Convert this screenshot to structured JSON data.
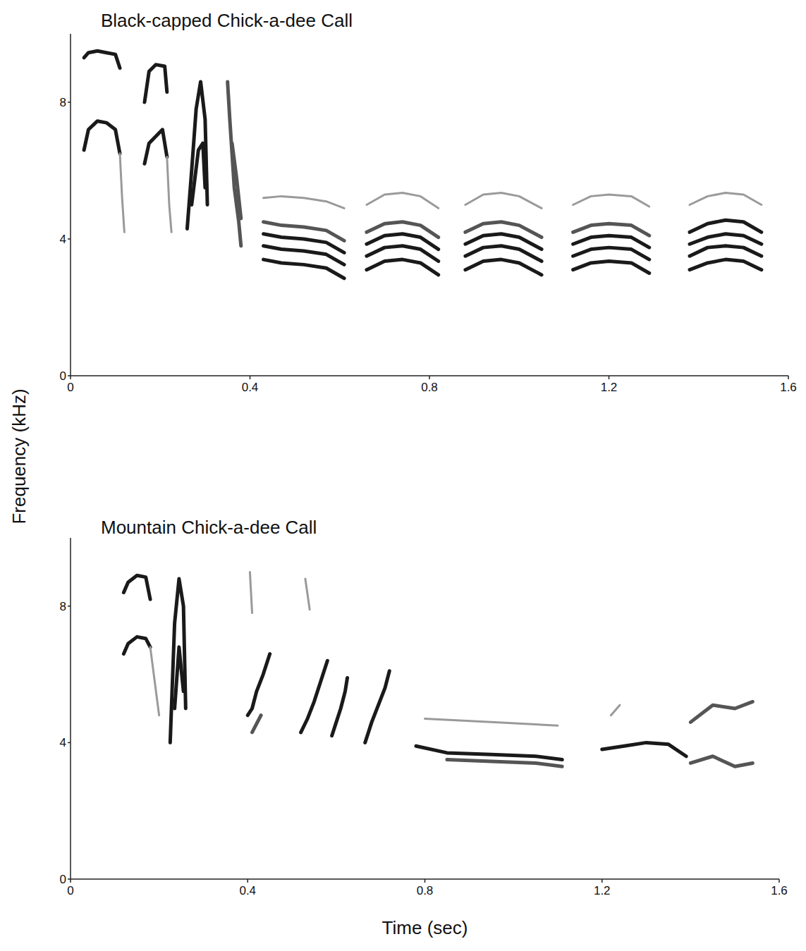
{
  "chart_data": [
    {
      "type": "spectrogram",
      "title": "Black-capped Chick-a-dee Call",
      "ylabel": "Frequency (kHz)",
      "xlim": [
        0,
        1.6
      ],
      "ylim": [
        0,
        10
      ],
      "xticks": [
        0,
        0.4,
        0.8,
        1.2,
        1.6
      ],
      "yticks": [
        0,
        4,
        8
      ],
      "series": [
        {
          "color": "#1a1a1a",
          "x": [
            0.03,
            0.04,
            0.06,
            0.08,
            0.1,
            0.11
          ],
          "values": [
            9.3,
            9.45,
            9.5,
            9.45,
            9.4,
            9.0
          ]
        },
        {
          "color": "#1a1a1a",
          "x": [
            0.03,
            0.04,
            0.06,
            0.08,
            0.1,
            0.11
          ],
          "values": [
            6.6,
            7.2,
            7.45,
            7.4,
            7.2,
            6.5
          ]
        },
        {
          "color": "#9a9a9a",
          "x": [
            0.11,
            0.115,
            0.12
          ],
          "values": [
            6.5,
            5.2,
            4.2
          ]
        },
        {
          "color": "#1a1a1a",
          "x": [
            0.165,
            0.175,
            0.19,
            0.21,
            0.215
          ],
          "values": [
            8.0,
            8.9,
            9.1,
            9.05,
            8.3
          ]
        },
        {
          "color": "#1a1a1a",
          "x": [
            0.165,
            0.175,
            0.19,
            0.205,
            0.215
          ],
          "values": [
            6.2,
            6.8,
            7.0,
            7.2,
            6.4
          ]
        },
        {
          "color": "#9a9a9a",
          "x": [
            0.215,
            0.22,
            0.225
          ],
          "values": [
            6.4,
            5.0,
            4.2
          ]
        },
        {
          "color": "#1a1a1a",
          "x": [
            0.26,
            0.27,
            0.28,
            0.29,
            0.3,
            0.305
          ],
          "values": [
            4.3,
            6.0,
            7.8,
            8.6,
            7.5,
            5.0
          ]
        },
        {
          "color": "#1a1a1a",
          "x": [
            0.27,
            0.285,
            0.295,
            0.3
          ],
          "values": [
            5.0,
            6.6,
            6.8,
            5.5
          ]
        },
        {
          "color": "#555555",
          "x": [
            0.35,
            0.355,
            0.36,
            0.365,
            0.37,
            0.375,
            0.38
          ],
          "values": [
            8.6,
            7.5,
            6.5,
            5.5,
            5.0,
            4.5,
            3.8
          ]
        },
        {
          "color": "#555555",
          "x": [
            0.36,
            0.37,
            0.38
          ],
          "values": [
            6.8,
            5.8,
            4.6
          ]
        },
        {
          "color": "#1a1a1a",
          "x": [
            0.43,
            0.47,
            0.52,
            0.57,
            0.61
          ],
          "values": [
            3.4,
            3.3,
            3.25,
            3.15,
            2.85
          ]
        },
        {
          "color": "#1a1a1a",
          "x": [
            0.43,
            0.47,
            0.52,
            0.57,
            0.61
          ],
          "values": [
            3.8,
            3.7,
            3.65,
            3.55,
            3.25
          ]
        },
        {
          "color": "#1a1a1a",
          "x": [
            0.43,
            0.47,
            0.52,
            0.57,
            0.61
          ],
          "values": [
            4.15,
            4.05,
            4.0,
            3.9,
            3.6
          ]
        },
        {
          "color": "#555555",
          "x": [
            0.43,
            0.47,
            0.52,
            0.57,
            0.61
          ],
          "values": [
            4.5,
            4.4,
            4.35,
            4.25,
            3.95
          ]
        },
        {
          "color": "#9a9a9a",
          "x": [
            0.43,
            0.47,
            0.52,
            0.57,
            0.61
          ],
          "values": [
            5.2,
            5.25,
            5.2,
            5.1,
            4.9
          ]
        },
        {
          "color": "#1a1a1a",
          "x": [
            0.66,
            0.7,
            0.74,
            0.78,
            0.82
          ],
          "values": [
            3.1,
            3.35,
            3.4,
            3.3,
            2.95
          ]
        },
        {
          "color": "#1a1a1a",
          "x": [
            0.66,
            0.7,
            0.74,
            0.78,
            0.82
          ],
          "values": [
            3.5,
            3.75,
            3.8,
            3.7,
            3.35
          ]
        },
        {
          "color": "#1a1a1a",
          "x": [
            0.66,
            0.7,
            0.74,
            0.78,
            0.82
          ],
          "values": [
            3.85,
            4.1,
            4.15,
            4.05,
            3.7
          ]
        },
        {
          "color": "#555555",
          "x": [
            0.66,
            0.7,
            0.74,
            0.78,
            0.82
          ],
          "values": [
            4.2,
            4.45,
            4.5,
            4.4,
            4.05
          ]
        },
        {
          "color": "#9a9a9a",
          "x": [
            0.66,
            0.7,
            0.74,
            0.78,
            0.82
          ],
          "values": [
            5.0,
            5.3,
            5.35,
            5.25,
            4.9
          ]
        },
        {
          "color": "#1a1a1a",
          "x": [
            0.88,
            0.92,
            0.96,
            1.0,
            1.05
          ],
          "values": [
            3.1,
            3.35,
            3.4,
            3.3,
            2.95
          ]
        },
        {
          "color": "#1a1a1a",
          "x": [
            0.88,
            0.92,
            0.96,
            1.0,
            1.05
          ],
          "values": [
            3.5,
            3.75,
            3.8,
            3.7,
            3.35
          ]
        },
        {
          "color": "#1a1a1a",
          "x": [
            0.88,
            0.92,
            0.96,
            1.0,
            1.05
          ],
          "values": [
            3.85,
            4.1,
            4.15,
            4.05,
            3.7
          ]
        },
        {
          "color": "#555555",
          "x": [
            0.88,
            0.92,
            0.96,
            1.0,
            1.05
          ],
          "values": [
            4.2,
            4.45,
            4.5,
            4.4,
            4.05
          ]
        },
        {
          "color": "#9a9a9a",
          "x": [
            0.88,
            0.92,
            0.96,
            1.0,
            1.05
          ],
          "values": [
            5.0,
            5.3,
            5.35,
            5.25,
            4.9
          ]
        },
        {
          "color": "#1a1a1a",
          "x": [
            1.12,
            1.16,
            1.2,
            1.25,
            1.29
          ],
          "values": [
            3.1,
            3.3,
            3.35,
            3.3,
            3.0
          ]
        },
        {
          "color": "#1a1a1a",
          "x": [
            1.12,
            1.16,
            1.2,
            1.25,
            1.29
          ],
          "values": [
            3.5,
            3.7,
            3.75,
            3.7,
            3.4
          ]
        },
        {
          "color": "#1a1a1a",
          "x": [
            1.12,
            1.16,
            1.2,
            1.25,
            1.29
          ],
          "values": [
            3.85,
            4.05,
            4.1,
            4.05,
            3.75
          ]
        },
        {
          "color": "#555555",
          "x": [
            1.12,
            1.16,
            1.2,
            1.25,
            1.29
          ],
          "values": [
            4.2,
            4.4,
            4.45,
            4.4,
            4.1
          ]
        },
        {
          "color": "#9a9a9a",
          "x": [
            1.12,
            1.16,
            1.2,
            1.25,
            1.29
          ],
          "values": [
            5.0,
            5.25,
            5.3,
            5.25,
            4.95
          ]
        },
        {
          "color": "#1a1a1a",
          "x": [
            1.38,
            1.42,
            1.46,
            1.5,
            1.54
          ],
          "values": [
            3.1,
            3.3,
            3.4,
            3.35,
            3.1
          ]
        },
        {
          "color": "#1a1a1a",
          "x": [
            1.38,
            1.42,
            1.46,
            1.5,
            1.54
          ],
          "values": [
            3.5,
            3.75,
            3.8,
            3.75,
            3.5
          ]
        },
        {
          "color": "#1a1a1a",
          "x": [
            1.38,
            1.42,
            1.46,
            1.5,
            1.54
          ],
          "values": [
            3.85,
            4.05,
            4.15,
            4.1,
            3.85
          ]
        },
        {
          "color": "#1a1a1a",
          "x": [
            1.38,
            1.42,
            1.46,
            1.5,
            1.54
          ],
          "values": [
            4.2,
            4.45,
            4.55,
            4.5,
            4.2
          ]
        },
        {
          "color": "#9a9a9a",
          "x": [
            1.38,
            1.42,
            1.46,
            1.5,
            1.54
          ],
          "values": [
            5.0,
            5.25,
            5.35,
            5.3,
            5.0
          ]
        }
      ]
    },
    {
      "type": "spectrogram",
      "title": "Mountain Chick-a-dee Call",
      "xlabel": "Time (sec)",
      "xlim": [
        0,
        1.6
      ],
      "ylim": [
        0,
        10
      ],
      "xticks": [
        0,
        0.4,
        0.8,
        1.2,
        1.6
      ],
      "yticks": [
        0,
        4,
        8
      ],
      "series": [
        {
          "color": "#1a1a1a",
          "x": [
            0.12,
            0.13,
            0.15,
            0.17,
            0.18
          ],
          "values": [
            8.4,
            8.7,
            8.9,
            8.85,
            8.2
          ]
        },
        {
          "color": "#1a1a1a",
          "x": [
            0.12,
            0.13,
            0.15,
            0.17,
            0.18
          ],
          "values": [
            6.6,
            6.9,
            7.1,
            7.05,
            6.8
          ]
        },
        {
          "color": "#9a9a9a",
          "x": [
            0.18,
            0.19,
            0.2
          ],
          "values": [
            6.8,
            5.8,
            4.8
          ]
        },
        {
          "color": "#1a1a1a",
          "x": [
            0.225,
            0.235,
            0.245,
            0.255,
            0.26
          ],
          "values": [
            4.0,
            7.5,
            8.8,
            8.0,
            5.0
          ]
        },
        {
          "color": "#1a1a1a",
          "x": [
            0.235,
            0.245,
            0.255
          ],
          "values": [
            5.0,
            6.8,
            5.5
          ]
        },
        {
          "color": "#1a1a1a",
          "x": [
            0.4,
            0.41,
            0.42,
            0.435,
            0.45
          ],
          "values": [
            4.8,
            5.0,
            5.5,
            6.0,
            6.6
          ]
        },
        {
          "color": "#555555",
          "x": [
            0.41,
            0.43
          ],
          "values": [
            4.3,
            4.8
          ]
        },
        {
          "color": "#9a9a9a",
          "x": [
            0.405,
            0.41
          ],
          "values": [
            9.0,
            7.8
          ]
        },
        {
          "color": "#1a1a1a",
          "x": [
            0.52,
            0.535,
            0.55,
            0.565,
            0.58
          ],
          "values": [
            4.3,
            4.7,
            5.2,
            5.8,
            6.4
          ]
        },
        {
          "color": "#9a9a9a",
          "x": [
            0.53,
            0.54
          ],
          "values": [
            8.8,
            7.9
          ]
        },
        {
          "color": "#1a1a1a",
          "x": [
            0.59,
            0.6,
            0.61,
            0.62,
            0.625
          ],
          "values": [
            4.2,
            4.6,
            5.0,
            5.5,
            5.9
          ]
        },
        {
          "color": "#1a1a1a",
          "x": [
            0.665,
            0.68,
            0.695,
            0.71,
            0.72
          ],
          "values": [
            4.0,
            4.6,
            5.1,
            5.6,
            6.1
          ]
        },
        {
          "color": "#1a1a1a",
          "x": [
            0.78,
            0.85,
            0.95,
            1.05,
            1.11
          ],
          "values": [
            3.9,
            3.7,
            3.65,
            3.6,
            3.5
          ]
        },
        {
          "color": "#555555",
          "x": [
            0.85,
            0.95,
            1.05,
            1.11
          ],
          "values": [
            3.5,
            3.45,
            3.4,
            3.3
          ]
        },
        {
          "color": "#9a9a9a",
          "x": [
            0.8,
            0.95,
            1.1
          ],
          "values": [
            4.7,
            4.6,
            4.5
          ]
        },
        {
          "color": "#1a1a1a",
          "x": [
            1.2,
            1.25,
            1.3,
            1.35,
            1.39
          ],
          "values": [
            3.8,
            3.9,
            4.0,
            3.95,
            3.6
          ]
        },
        {
          "color": "#555555",
          "x": [
            1.4,
            1.45,
            1.5,
            1.54
          ],
          "values": [
            4.6,
            5.1,
            5.0,
            5.2
          ]
        },
        {
          "color": "#555555",
          "x": [
            1.4,
            1.45,
            1.5,
            1.54
          ],
          "values": [
            3.4,
            3.6,
            3.3,
            3.4
          ]
        },
        {
          "color": "#9a9a9a",
          "x": [
            1.22,
            1.24
          ],
          "values": [
            4.8,
            5.1
          ]
        }
      ]
    }
  ]
}
